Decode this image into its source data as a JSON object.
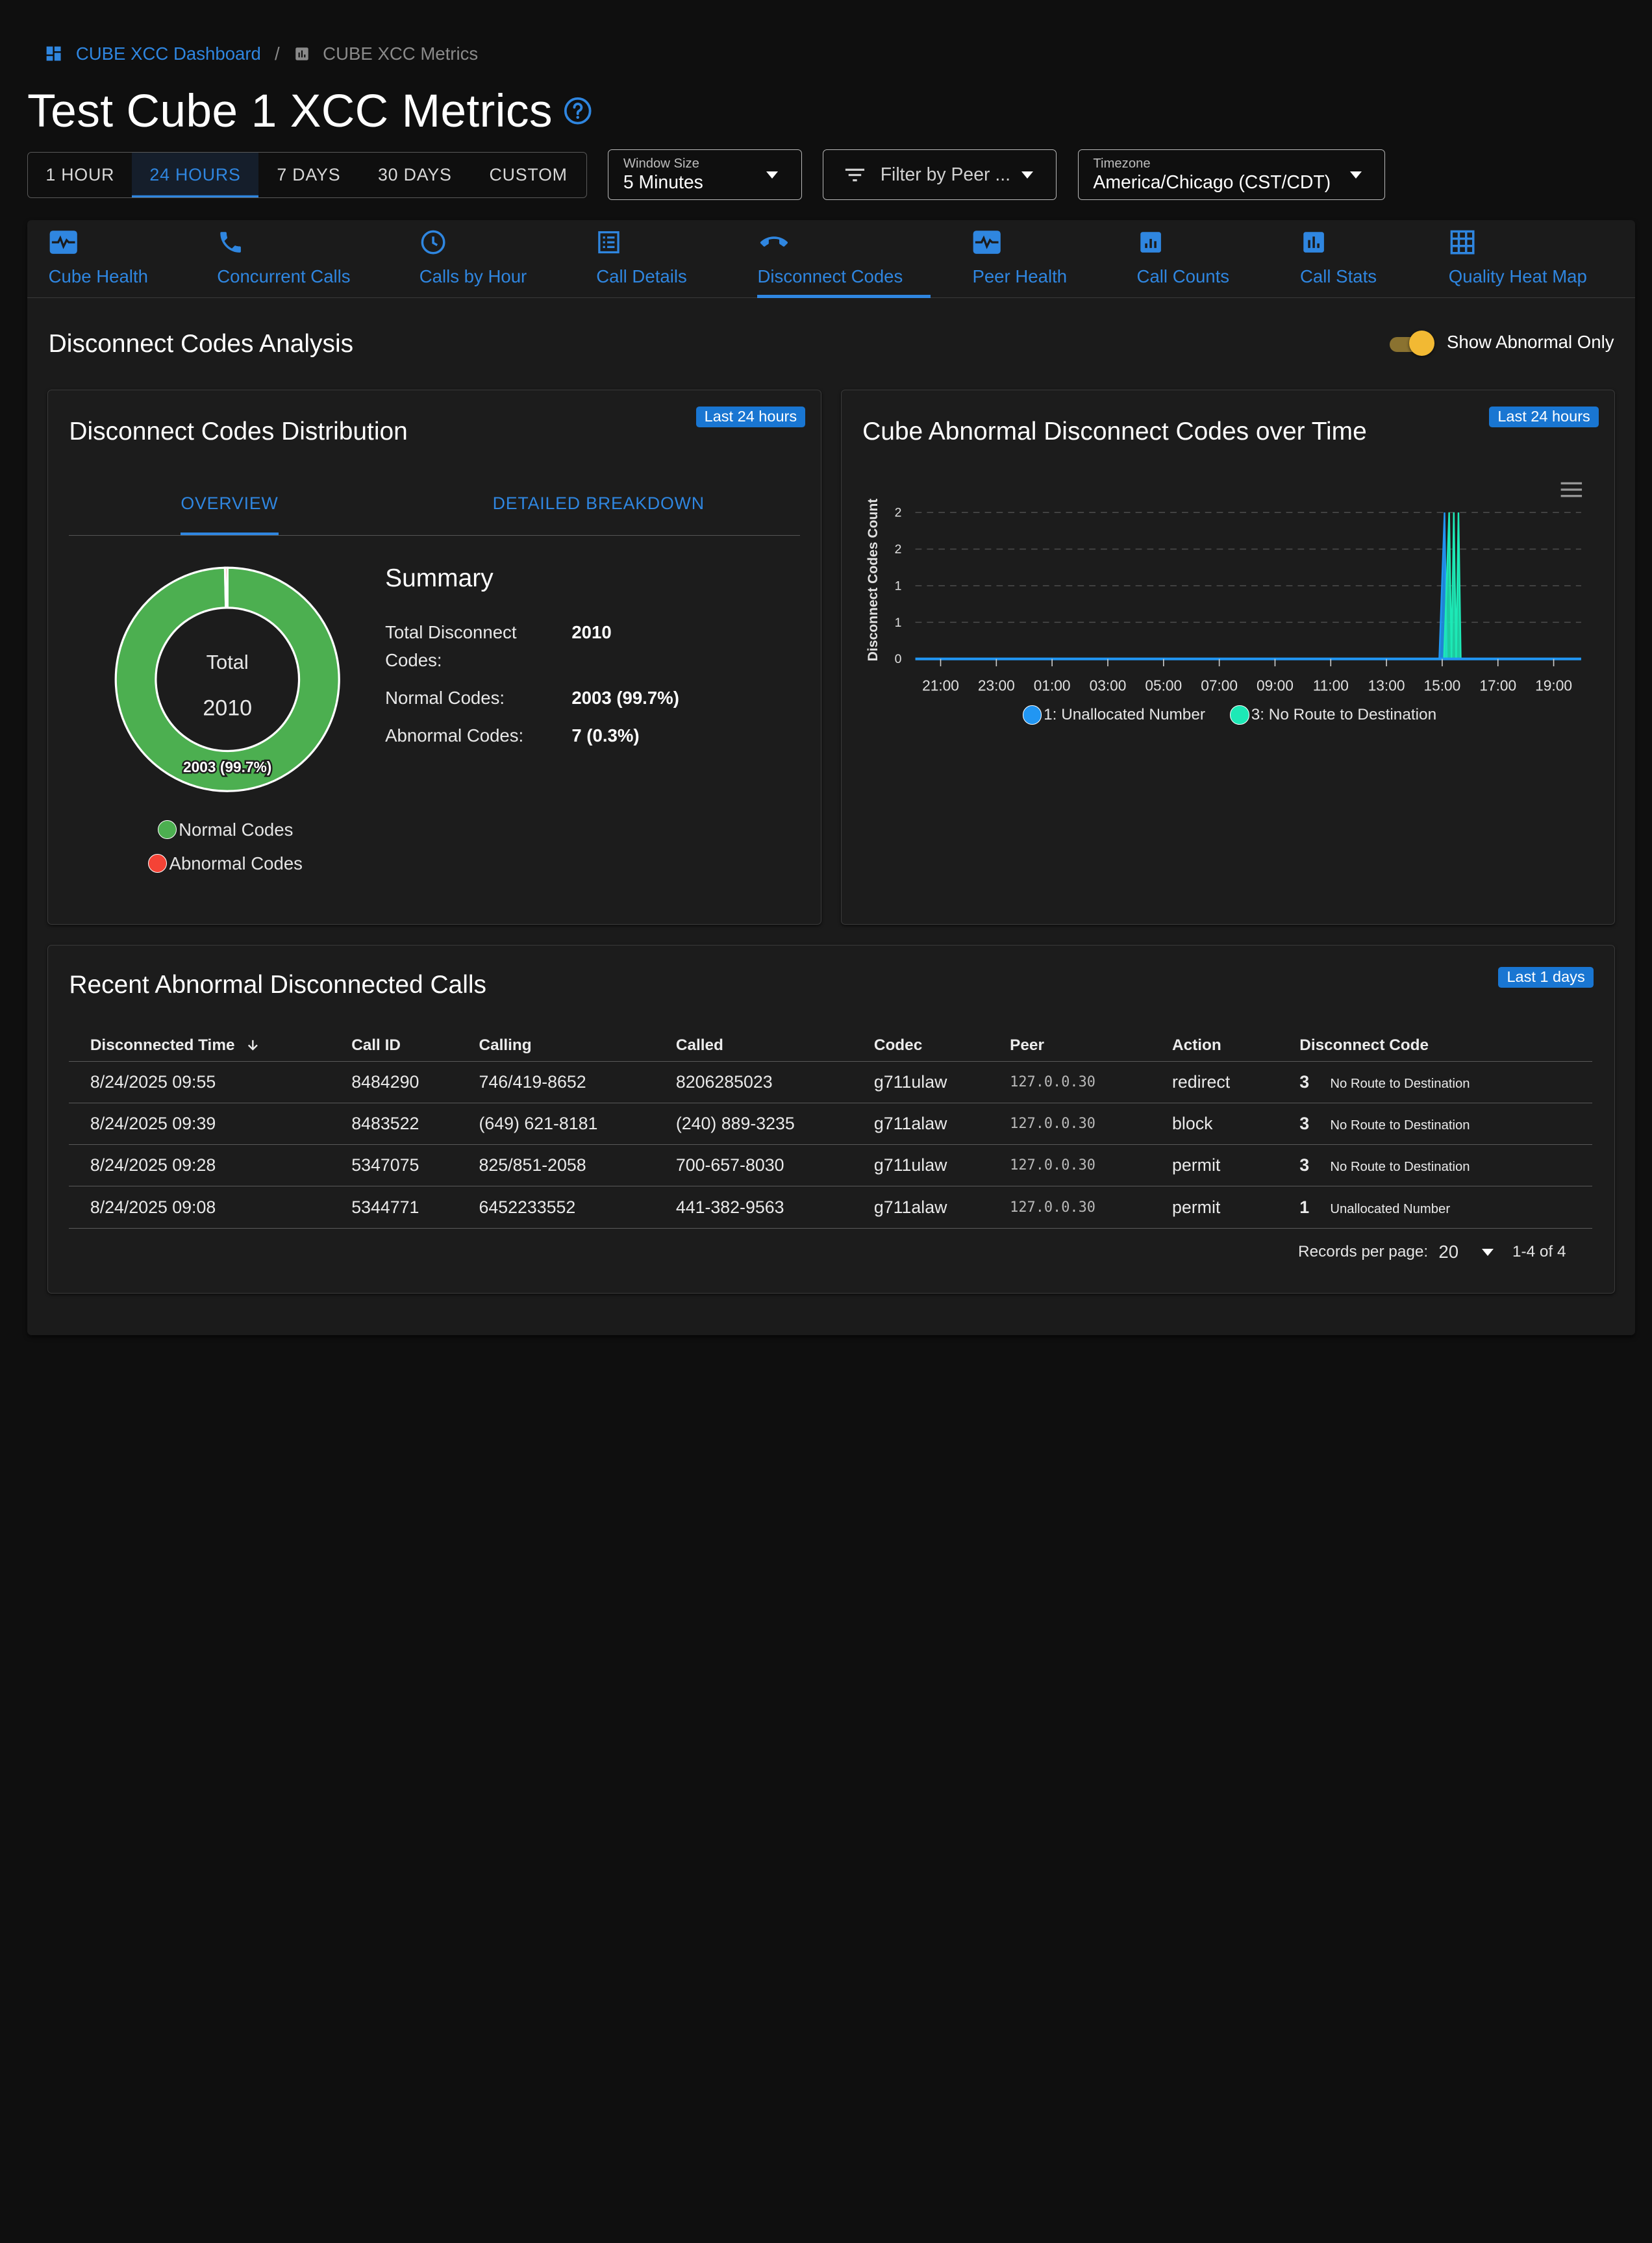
{
  "breadcrumb": {
    "dashboard": "CUBE XCC Dashboard",
    "separator": "/",
    "current": "CUBE XCC Metrics"
  },
  "page": {
    "title": "Test Cube 1 XCC Metrics"
  },
  "range": {
    "options": [
      "1 HOUR",
      "24 HOURS",
      "7 DAYS",
      "30 DAYS",
      "CUSTOM"
    ],
    "selected": "24 HOURS"
  },
  "window_size": {
    "label": "Window Size",
    "value": "5 Minutes"
  },
  "peer_filter": {
    "placeholder": "Filter by Peer ..."
  },
  "timezone": {
    "label": "Timezone",
    "value": "America/Chicago (CST/CDT)"
  },
  "tabs": [
    {
      "label": "Cube Health",
      "icon": "heart-monitor-icon"
    },
    {
      "label": "Concurrent Calls",
      "icon": "phone-icon"
    },
    {
      "label": "Calls by Hour",
      "icon": "clock-icon"
    },
    {
      "label": "Call Details",
      "icon": "list-icon"
    },
    {
      "label": "Disconnect Codes",
      "icon": "hangup-icon"
    },
    {
      "label": "Peer Health",
      "icon": "heart-monitor-icon"
    },
    {
      "label": "Call Counts",
      "icon": "bar-chart-box-icon"
    },
    {
      "label": "Call Stats",
      "icon": "bar-chart-box-icon"
    },
    {
      "label": "Quality Heat Map",
      "icon": "grid-icon"
    }
  ],
  "active_tab": "Disconnect Codes",
  "section": {
    "title": "Disconnect Codes Analysis",
    "toggle_label": "Show Abnormal Only",
    "toggle_on": true
  },
  "distribution": {
    "title": "Disconnect Codes Distribution",
    "badge": "Last 24 hours",
    "subtabs": [
      "OVERVIEW",
      "DETAILED BREAKDOWN"
    ],
    "active_subtab": "OVERVIEW",
    "donut_center_label": "Total",
    "donut_center_value": "2010",
    "donut_slice_label": "2003 (99.7%)",
    "legend": [
      {
        "label": "Normal Codes",
        "color": "#4caf50"
      },
      {
        "label": "Abnormal Codes",
        "color": "#f44336"
      }
    ],
    "summary": {
      "title": "Summary",
      "rows": [
        {
          "label": "Total Disconnect Codes:",
          "value": "2010"
        },
        {
          "label": "Normal Codes:",
          "value": "2003 (99.7%)"
        },
        {
          "label": "Abnormal Codes:",
          "value": "7 (0.3%)"
        }
      ]
    }
  },
  "abnormal_chart": {
    "title": "Cube Abnormal Disconnect Codes over Time",
    "badge": "Last 24 hours"
  },
  "chart_data": [
    {
      "type": "pie",
      "labels": [
        "Normal Codes",
        "Abnormal Codes"
      ],
      "values": [
        2003,
        7
      ],
      "colors": [
        "#4caf50",
        "#f44336"
      ],
      "data_labels": [
        "2003 (99.7%)"
      ],
      "legend": "bottom"
    },
    {
      "type": "area",
      "title": "Cube Abnormal Disconnect Codes over Time",
      "ylabel": "Disconnect Codes Count",
      "xlabel": "",
      "x_ticks": [
        "21:00",
        "23:00",
        "01:00",
        "03:00",
        "05:00",
        "07:00",
        "09:00",
        "11:00",
        "13:00",
        "15:00",
        "17:00",
        "19:00"
      ],
      "y_ticks": [
        "0",
        "1",
        "1",
        "2",
        "2"
      ],
      "ylim": [
        0,
        2
      ],
      "grid": true,
      "legend": "bottom",
      "series": [
        {
          "name": "1: Unallocated Number",
          "color": "#2196f3",
          "x": [
            "15:05",
            "15:10",
            "15:15"
          ],
          "values": [
            2,
            0,
            0
          ]
        },
        {
          "name": "3: No Route to Destination",
          "color": "#1de9b6",
          "x": [
            "15:15",
            "15:20",
            "15:25",
            "15:30",
            "15:35",
            "15:40"
          ],
          "values": [
            2,
            0,
            2,
            0,
            2,
            0
          ]
        }
      ]
    }
  ],
  "recent": {
    "title": "Recent Abnormal Disconnected Calls",
    "badge": "Last 1 days",
    "columns": [
      "Disconnected Time",
      "Call ID",
      "Calling",
      "Called",
      "Codec",
      "Peer",
      "Action",
      "Disconnect Code"
    ],
    "rows": [
      {
        "time": "8/24/2025 09:55",
        "call_id": "8484290",
        "calling": "746/419-8652",
        "called": "8206285023",
        "codec": "g711ulaw",
        "peer": "127.0.0.30",
        "action": "redirect",
        "code": "3",
        "code_desc": "No Route to Destination"
      },
      {
        "time": "8/24/2025 09:39",
        "call_id": "8483522",
        "calling": "(649) 621-8181",
        "called": "(240) 889-3235",
        "codec": "g711alaw",
        "peer": "127.0.0.30",
        "action": "block",
        "code": "3",
        "code_desc": "No Route to Destination"
      },
      {
        "time": "8/24/2025 09:28",
        "call_id": "5347075",
        "calling": "825/851-2058",
        "called": "700-657-8030",
        "codec": "g711ulaw",
        "peer": "127.0.0.30",
        "action": "permit",
        "code": "3",
        "code_desc": "No Route to Destination"
      },
      {
        "time": "8/24/2025 09:08",
        "call_id": "5344771",
        "calling": "6452233552",
        "called": "441-382-9563",
        "codec": "g711alaw",
        "peer": "127.0.0.30",
        "action": "permit",
        "code": "1",
        "code_desc": "Unallocated Number"
      }
    ],
    "pager": {
      "label": "Records per page:",
      "per_page": "20",
      "range": "1-4 of 4"
    }
  },
  "colors": {
    "accent": "#2f86e0",
    "badge": "#1976d2",
    "normal": "#4caf50",
    "abnormal": "#f44336",
    "toggle": "#f2b933"
  }
}
